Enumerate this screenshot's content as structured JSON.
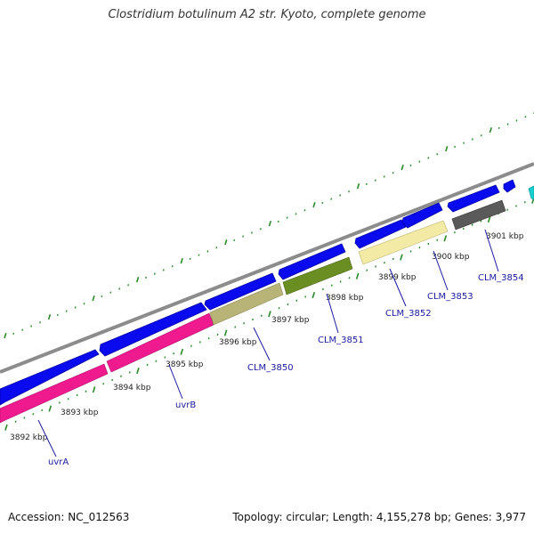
{
  "title": "Clostridium botulinum A2 str. Kyoto, complete genome",
  "footer": {
    "accession": "Accession: NC_012563",
    "summary": "Topology: circular; Length: 4,155,278 bp; Genes: 3,977"
  },
  "colors": {
    "backbone": "#8c8c8c",
    "forward_gene": "#0a0aee",
    "tick": "#2a8a2a",
    "label": "#1a1aa0"
  },
  "kbp_labels": [
    "3892 kbp",
    "3893 kbp",
    "3894 kbp",
    "3895 kbp",
    "3896 kbp",
    "3897 kbp",
    "3898 kbp",
    "3899 kbp",
    "3900 kbp",
    "3901 kbp"
  ],
  "genes": [
    {
      "label": "uvrA",
      "color": "#ee1a8e"
    },
    {
      "label": "uvrB",
      "color": "#ee1a8e"
    },
    {
      "label": "CLM_3850",
      "color": "#b8b478"
    },
    {
      "label": "CLM_3851",
      "color": "#6b8e23"
    },
    {
      "label": "CLM_3852",
      "color": "#f3eaa6"
    },
    {
      "label": "CLM_3853",
      "color": ""
    },
    {
      "label": "CLM_3854",
      "color": "#5a5a5a"
    }
  ]
}
